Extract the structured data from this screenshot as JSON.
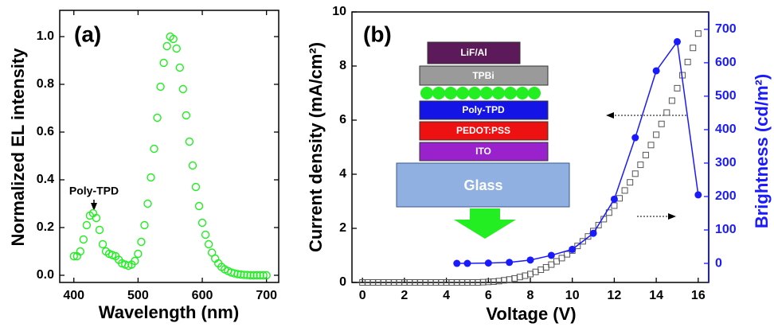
{
  "chart_data": [
    {
      "type": "scatter",
      "panel_label": "(a)",
      "x_label": "Wavelength (nm)",
      "y_label": "Normalized EL intensity",
      "annotation": "Poly-TPD",
      "marker": "circle-open",
      "color": "#22ee22",
      "x": [
        400,
        405,
        410,
        415,
        420,
        425,
        430,
        435,
        440,
        445,
        450,
        455,
        460,
        465,
        470,
        475,
        480,
        485,
        490,
        495,
        500,
        505,
        510,
        515,
        520,
        525,
        530,
        535,
        540,
        545,
        550,
        555,
        560,
        565,
        570,
        575,
        580,
        585,
        590,
        595,
        600,
        605,
        610,
        615,
        620,
        625,
        630,
        635,
        640,
        645,
        650,
        655,
        660,
        665,
        670,
        675,
        680,
        685,
        690,
        695,
        700
      ],
      "values": [
        0.08,
        0.08,
        0.1,
        0.15,
        0.21,
        0.25,
        0.26,
        0.24,
        0.19,
        0.13,
        0.1,
        0.09,
        0.085,
        0.08,
        0.065,
        0.05,
        0.045,
        0.04,
        0.045,
        0.06,
        0.09,
        0.14,
        0.21,
        0.3,
        0.41,
        0.53,
        0.66,
        0.79,
        0.89,
        0.96,
        1,
        0.99,
        0.95,
        0.87,
        0.78,
        0.67,
        0.56,
        0.46,
        0.37,
        0.29,
        0.22,
        0.17,
        0.13,
        0.095,
        0.07,
        0.05,
        0.035,
        0.025,
        0.018,
        0.012,
        0.008,
        0.005,
        0.003,
        0.002,
        0.001,
        0,
        0,
        0,
        0,
        0,
        0
      ],
      "xlim": [
        378,
        719
      ],
      "xticks": [
        400,
        500,
        600,
        700
      ],
      "ylim": [
        -0.03,
        1.11
      ],
      "yticks": [
        {
          "value": 0,
          "label": "0.0"
        },
        0.2,
        0.4,
        0.6,
        0.8,
        {
          "value": 1,
          "label": "1.0"
        }
      ]
    },
    {
      "type": "scatter",
      "panel_label": "(b)",
      "x_label": "Voltage (V)",
      "y_label": "Current density (mA/cm²)",
      "y2_label": "Brightness (cd/m²)",
      "inset": {
        "layers": [
          "LiF/Al",
          "TPBi",
          "Poly-TPD",
          "PEDOT:PSS",
          "ITO"
        ],
        "substrate": "Glass"
      },
      "xlim": [
        -0.5,
        16.5
      ],
      "xticks": [
        0,
        2,
        4,
        6,
        8,
        10,
        12,
        14,
        16
      ],
      "ylim": [
        0,
        10
      ],
      "yticks": [
        0,
        2,
        4,
        6,
        8,
        10
      ],
      "y2lim": [
        -57,
        752
      ],
      "y2ticks": [
        0,
        100,
        200,
        300,
        400,
        500,
        600,
        700
      ],
      "y2color": "#1a1aff",
      "series": [
        {
          "marker": "square-open",
          "color": "#555555",
          "x": [
            0,
            0.25,
            0.5,
            0.75,
            1,
            1.25,
            1.5,
            1.75,
            2,
            2.25,
            2.5,
            2.75,
            3,
            3.25,
            3.5,
            3.75,
            4,
            4.25,
            4.5,
            4.75,
            5,
            5.25,
            5.5,
            5.75,
            6,
            6.25,
            6.5,
            6.75,
            7,
            7.25,
            7.5,
            7.75,
            8,
            8.25,
            8.5,
            8.75,
            9,
            9.25,
            9.5,
            9.75,
            10,
            10.25,
            10.5,
            10.75,
            11,
            11.25,
            11.5,
            11.75,
            12,
            12.25,
            12.5,
            12.75,
            13,
            13.25,
            13.5,
            13.75,
            14,
            14.25,
            14.5,
            14.75,
            15,
            15.25,
            15.5,
            15.75,
            16
          ],
          "values": [
            0,
            0,
            0,
            0,
            0,
            0,
            0,
            0,
            0,
            0,
            0,
            0,
            0,
            0,
            0,
            0,
            0,
            0,
            0,
            0,
            0,
            0,
            0,
            0.01,
            0.02,
            0.03,
            0.05,
            0.08,
            0.11,
            0.15,
            0.2,
            0.25,
            0.31,
            0.39,
            0.47,
            0.56,
            0.66,
            0.78,
            0.9,
            1.04,
            1.18,
            1.35,
            1.52,
            1.7,
            1.9,
            2.12,
            2.34,
            2.58,
            2.84,
            3.11,
            3.4,
            3.7,
            4.02,
            4.35,
            4.71,
            5.08,
            5.46,
            5.86,
            6.28,
            6.72,
            7.18,
            7.66,
            8.15,
            8.67,
            9.2
          ]
        },
        {
          "marker": "circle",
          "color": "#1a1aff",
          "line": true,
          "axis": "y2",
          "x": [
            4.5,
            5,
            6,
            7,
            8,
            9,
            10,
            11,
            12,
            13,
            14,
            15,
            16
          ],
          "values": [
            0,
            0,
            1,
            3,
            10,
            24,
            42,
            90,
            192,
            376,
            576,
            663,
            205
          ]
        }
      ]
    }
  ]
}
